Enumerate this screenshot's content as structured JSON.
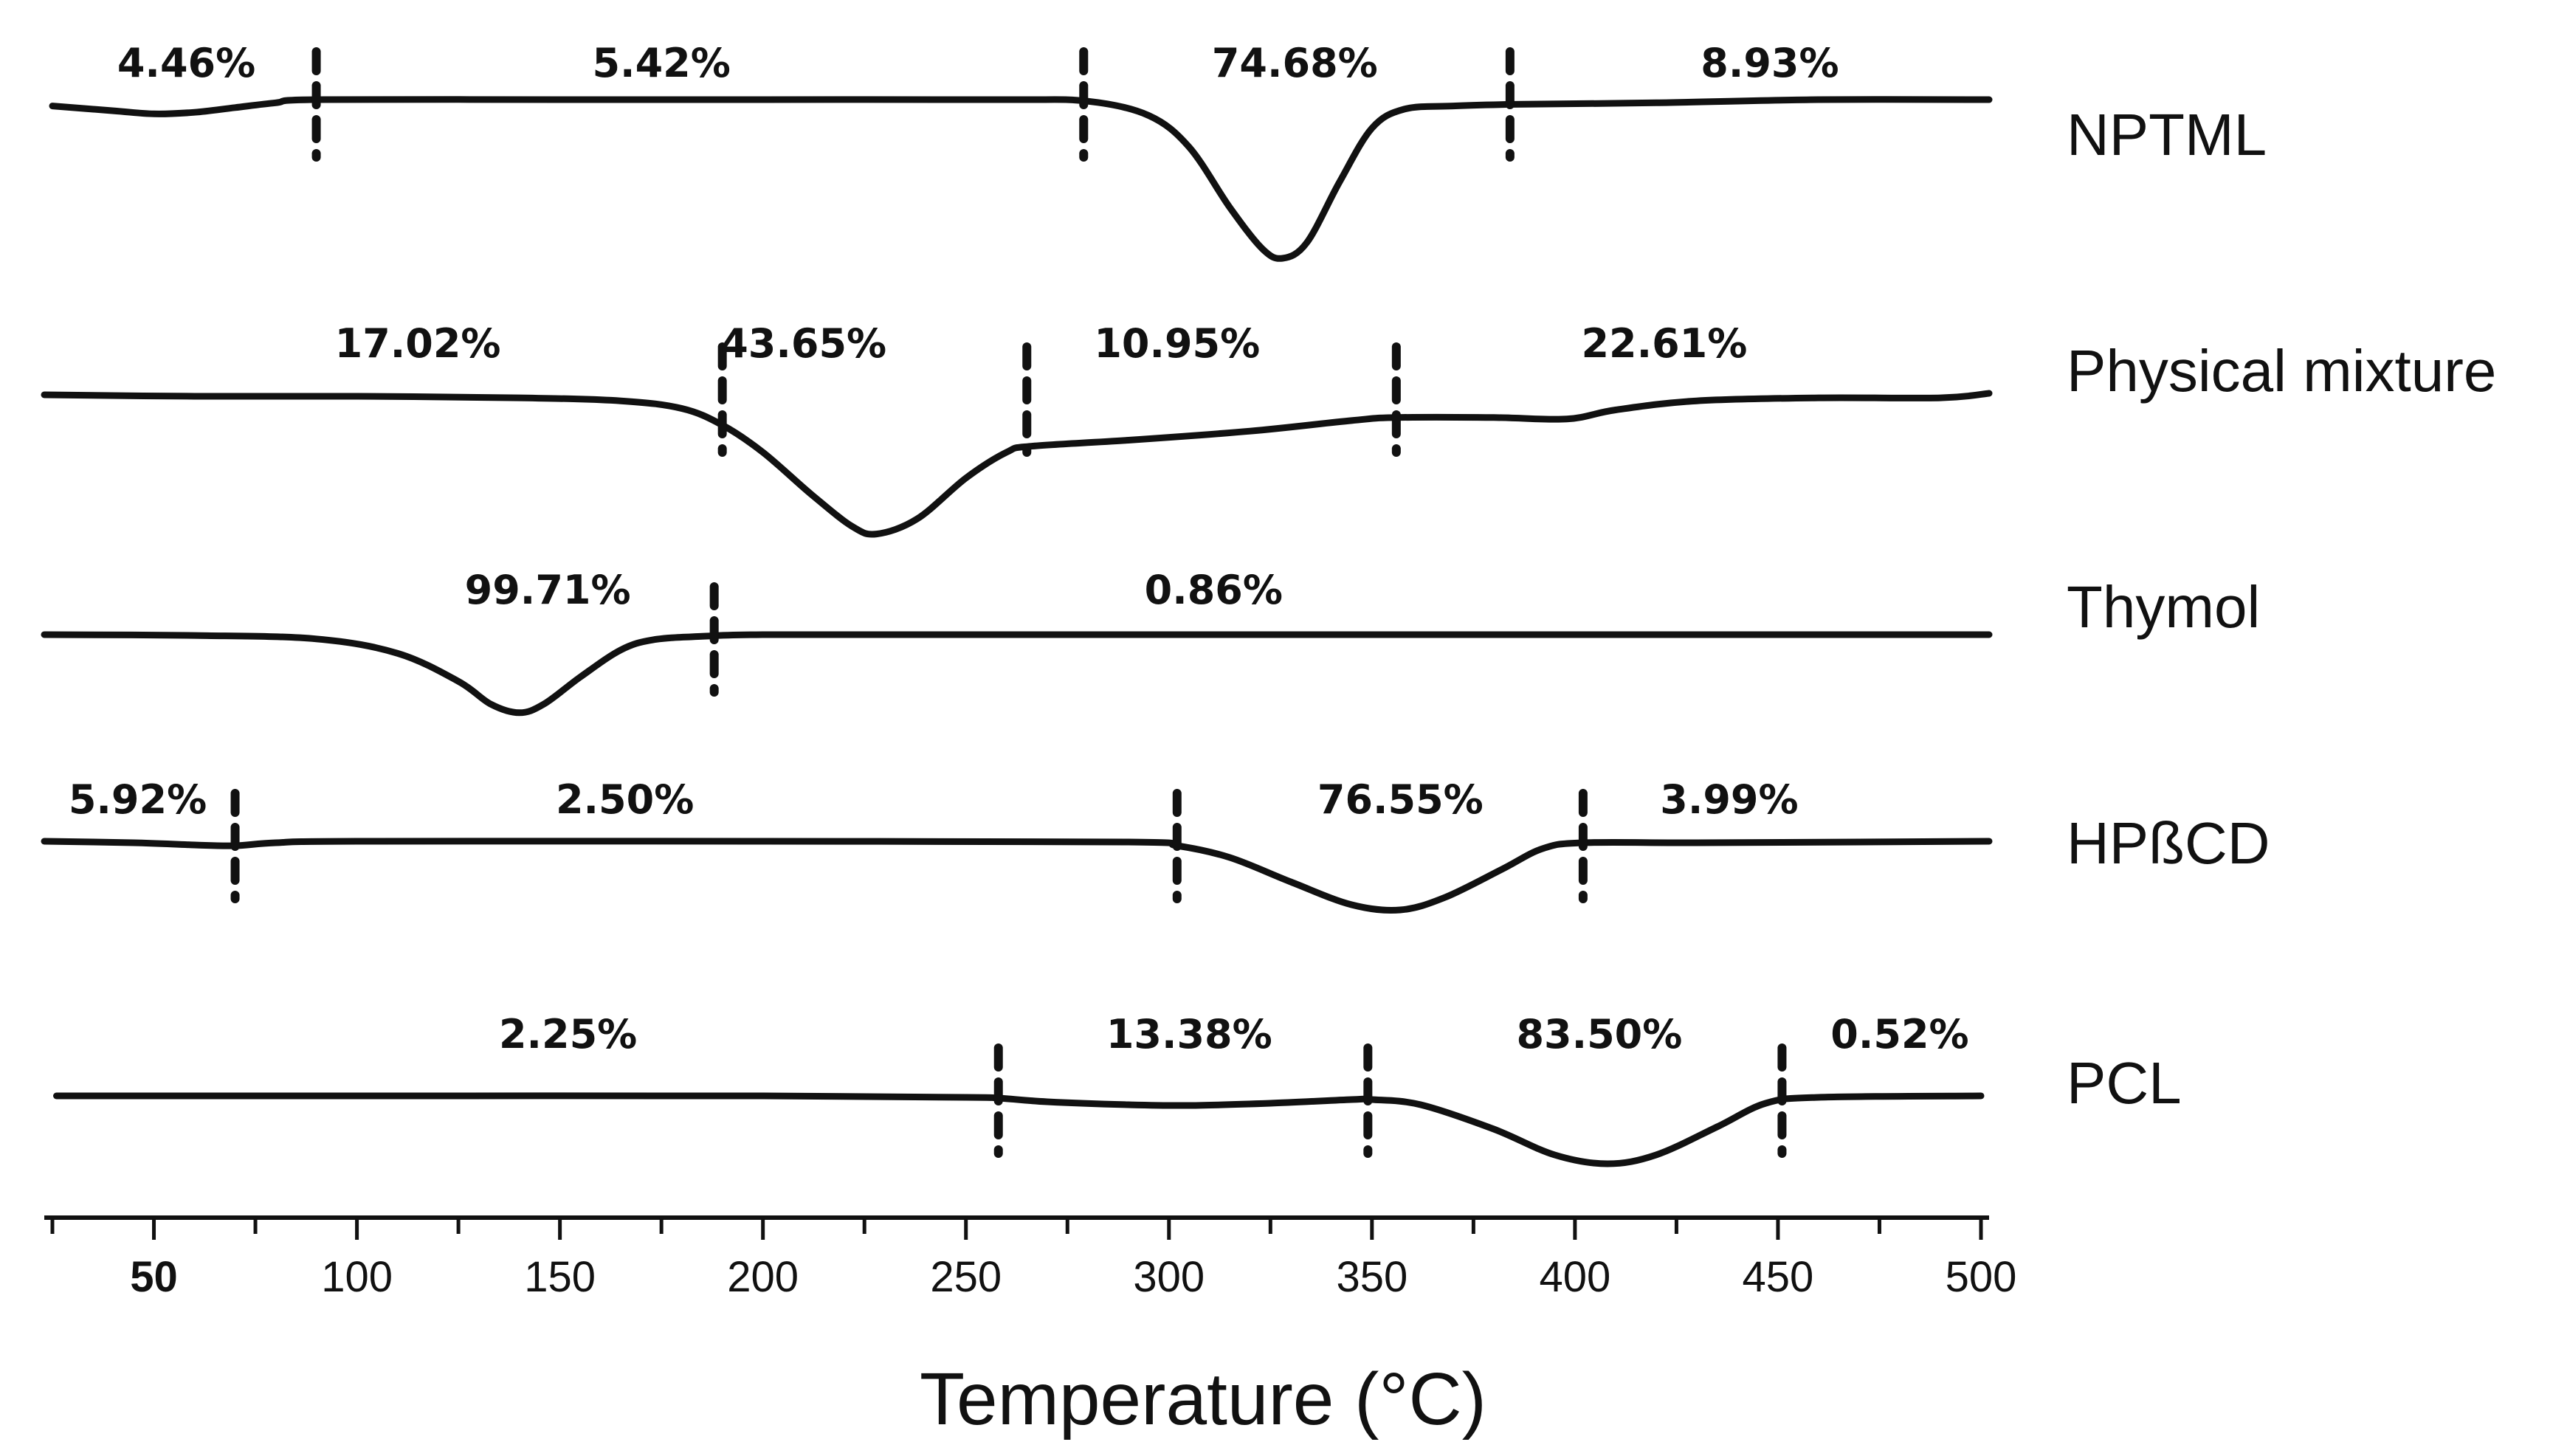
{
  "chart_data": {
    "type": "line",
    "title": "",
    "xlabel": "Temperature (°C)",
    "ylabel": "",
    "xlim": [
      23,
      502
    ],
    "xticks": [
      50,
      100,
      150,
      200,
      250,
      300,
      350,
      400,
      450,
      500
    ],
    "series": [
      {
        "name": "NPTML",
        "curve": [
          [
            25,
            0.04
          ],
          [
            40,
            0.07
          ],
          [
            50,
            0.09
          ],
          [
            60,
            0.08
          ],
          [
            70,
            0.05
          ],
          [
            80,
            0.02
          ],
          [
            90,
            0
          ],
          [
            150,
            0
          ],
          [
            200,
            0
          ],
          [
            260,
            0
          ],
          [
            280,
            0.01
          ],
          [
            295,
            0.1
          ],
          [
            305,
            0.3
          ],
          [
            315,
            0.68
          ],
          [
            323,
            0.94
          ],
          [
            328,
            1.0
          ],
          [
            334,
            0.9
          ],
          [
            342,
            0.52
          ],
          [
            350,
            0.18
          ],
          [
            358,
            0.06
          ],
          [
            370,
            0.04
          ],
          [
            385,
            0.03
          ],
          [
            420,
            0.02
          ],
          [
            460,
            0
          ],
          [
            502,
            0
          ]
        ],
        "dividers": [
          90,
          279,
          384
        ],
        "annotations": [
          {
            "text": "4.46%",
            "x": 58
          },
          {
            "text": "5.42%",
            "x": 175
          },
          {
            "text": "74.68%",
            "x": 331
          },
          {
            "text": "8.93%",
            "x": 448
          }
        ]
      },
      {
        "name": "Physical mixture",
        "curve": [
          [
            23,
            0
          ],
          [
            60,
            0.01
          ],
          [
            100,
            0.01
          ],
          [
            140,
            0.02
          ],
          [
            165,
            0.04
          ],
          [
            180,
            0.09
          ],
          [
            190,
            0.2
          ],
          [
            200,
            0.38
          ],
          [
            212,
            0.66
          ],
          [
            222,
            0.87
          ],
          [
            228,
            0.92
          ],
          [
            238,
            0.82
          ],
          [
            250,
            0.55
          ],
          [
            260,
            0.38
          ],
          [
            266,
            0.34
          ],
          [
            290,
            0.3
          ],
          [
            320,
            0.24
          ],
          [
            345,
            0.17
          ],
          [
            356,
            0.15
          ],
          [
            380,
            0.15
          ],
          [
            398,
            0.16
          ],
          [
            410,
            0.1
          ],
          [
            430,
            0.04
          ],
          [
            460,
            0.02
          ],
          [
            490,
            0.02
          ],
          [
            502,
            -0.01
          ]
        ],
        "dividers": [
          190,
          265,
          356
        ],
        "annotations": [
          {
            "text": "17.02%",
            "x": 115
          },
          {
            "text": "43.65%",
            "x": 210
          },
          {
            "text": "10.95%",
            "x": 302
          },
          {
            "text": "22.61%",
            "x": 422
          }
        ]
      },
      {
        "name": "Thymol",
        "curve": [
          [
            23,
            0
          ],
          [
            60,
            0.01
          ],
          [
            90,
            0.05
          ],
          [
            110,
            0.22
          ],
          [
            125,
            0.55
          ],
          [
            133,
            0.82
          ],
          [
            140,
            0.92
          ],
          [
            146,
            0.82
          ],
          [
            155,
            0.5
          ],
          [
            165,
            0.18
          ],
          [
            173,
            0.06
          ],
          [
            185,
            0.02
          ],
          [
            200,
            0
          ],
          [
            250,
            0
          ],
          [
            350,
            0
          ],
          [
            450,
            0
          ],
          [
            502,
            0
          ]
        ],
        "dividers": [
          188
        ],
        "annotations": [
          {
            "text": "99.71%",
            "x": 147
          },
          {
            "text": "0.86%",
            "x": 311
          }
        ]
      },
      {
        "name": "HPßCD",
        "curve": [
          [
            23,
            0
          ],
          [
            45,
            0.02
          ],
          [
            60,
            0.05
          ],
          [
            70,
            0.06
          ],
          [
            80,
            0.02
          ],
          [
            100,
            0
          ],
          [
            200,
            0
          ],
          [
            290,
            0.01
          ],
          [
            302,
            0.06
          ],
          [
            315,
            0.22
          ],
          [
            330,
            0.55
          ],
          [
            345,
            0.86
          ],
          [
            357,
            0.93
          ],
          [
            368,
            0.76
          ],
          [
            382,
            0.38
          ],
          [
            392,
            0.1
          ],
          [
            402,
            0.02
          ],
          [
            430,
            0.02
          ],
          [
            470,
            0.01
          ],
          [
            502,
            0
          ]
        ],
        "dividers": [
          70,
          302,
          402
        ],
        "annotations": [
          {
            "text": "5.92%",
            "x": 46
          },
          {
            "text": "2.50%",
            "x": 166
          },
          {
            "text": "76.55%",
            "x": 357
          },
          {
            "text": "3.99%",
            "x": 438
          }
        ]
      },
      {
        "name": "PCL",
        "curve": [
          [
            26,
            0
          ],
          [
            100,
            0
          ],
          [
            200,
            0
          ],
          [
            250,
            0.02
          ],
          [
            258,
            0.03
          ],
          [
            270,
            0.08
          ],
          [
            290,
            0.12
          ],
          [
            305,
            0.13
          ],
          [
            325,
            0.1
          ],
          [
            345,
            0.05
          ],
          [
            350,
            0.05
          ],
          [
            362,
            0.12
          ],
          [
            380,
            0.45
          ],
          [
            395,
            0.8
          ],
          [
            408,
            0.92
          ],
          [
            420,
            0.8
          ],
          [
            435,
            0.42
          ],
          [
            447,
            0.1
          ],
          [
            460,
            0.02
          ],
          [
            500,
            0
          ]
        ],
        "dividers": [
          258,
          349,
          451
        ],
        "annotations": [
          {
            "text": "2.25%",
            "x": 152
          },
          {
            "text": "13.38%",
            "x": 305
          },
          {
            "text": "83.50%",
            "x": 406
          },
          {
            "text": "0.52%",
            "x": 480
          }
        ]
      }
    ]
  }
}
